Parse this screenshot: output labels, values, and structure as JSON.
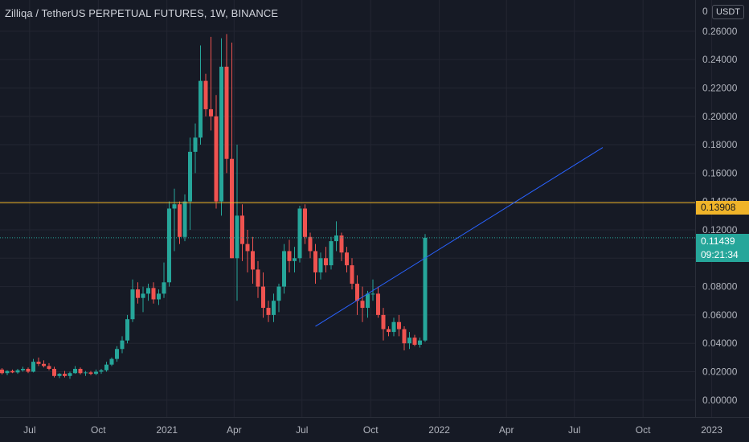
{
  "title": "Zilliqa / TetherUS PERPETUAL FUTURES, 1W, BINANCE",
  "currency_button": "USDT",
  "colors": {
    "background": "#161a25",
    "grid": "#232632",
    "up": "#26a69a",
    "down": "#ef5350",
    "horizontal_line": "#f0b429",
    "trend_line": "#2962ff"
  },
  "price_labels": {
    "last_price": "0.11439",
    "countdown": "09:21:34",
    "horizontal_line_price": "0.13908"
  },
  "chart_data": {
    "type": "candlestick",
    "title": "Zilliqa / TetherUS PERPETUAL FUTURES, 1W, BINANCE",
    "y_ticks": [
      "0.26000",
      "0.24000",
      "0.22000",
      "0.20000",
      "0.18000",
      "0.16000",
      "0.14000",
      "0.12000",
      "0.10000",
      "0.08000",
      "0.06000",
      "0.04000",
      "0.02000",
      "0.00000"
    ],
    "x_ticks": [
      "Jul",
      "Oct",
      "2021",
      "Apr",
      "Jul",
      "Oct",
      "2022",
      "Apr",
      "Jul",
      "Oct",
      "2023"
    ],
    "ylim": [
      -0.012,
      0.282
    ],
    "horizontal_line": 0.13908,
    "trend_line": {
      "start": [
        "2021-07-19",
        0.052
      ],
      "end": [
        "2022-08-08",
        0.178
      ]
    },
    "candles": [
      [
        0.0215,
        0.0225,
        0.018,
        0.019
      ],
      [
        0.019,
        0.021,
        0.0175,
        0.0205
      ],
      [
        0.0205,
        0.0215,
        0.019,
        0.0195
      ],
      [
        0.0195,
        0.022,
        0.0185,
        0.021
      ],
      [
        0.021,
        0.0235,
        0.02,
        0.022
      ],
      [
        0.022,
        0.023,
        0.019,
        0.02
      ],
      [
        0.02,
        0.029,
        0.0195,
        0.027
      ],
      [
        0.027,
        0.03,
        0.024,
        0.0255
      ],
      [
        0.0255,
        0.028,
        0.023,
        0.024
      ],
      [
        0.024,
        0.026,
        0.021,
        0.022
      ],
      [
        0.022,
        0.0235,
        0.016,
        0.017
      ],
      [
        0.017,
        0.019,
        0.0155,
        0.0185
      ],
      [
        0.0185,
        0.0205,
        0.016,
        0.017
      ],
      [
        0.017,
        0.02,
        0.015,
        0.019
      ],
      [
        0.019,
        0.024,
        0.0185,
        0.022
      ],
      [
        0.022,
        0.023,
        0.018,
        0.019
      ],
      [
        0.019,
        0.0205,
        0.017,
        0.0195
      ],
      [
        0.0195,
        0.0205,
        0.0175,
        0.0185
      ],
      [
        0.0185,
        0.0215,
        0.0175,
        0.02
      ],
      [
        0.02,
        0.022,
        0.0185,
        0.021
      ],
      [
        0.021,
        0.027,
        0.02,
        0.025
      ],
      [
        0.025,
        0.03,
        0.024,
        0.029
      ],
      [
        0.029,
        0.038,
        0.027,
        0.036
      ],
      [
        0.036,
        0.045,
        0.033,
        0.042
      ],
      [
        0.042,
        0.06,
        0.04,
        0.057
      ],
      [
        0.057,
        0.085,
        0.055,
        0.078
      ],
      [
        0.078,
        0.083,
        0.068,
        0.072
      ],
      [
        0.072,
        0.08,
        0.062,
        0.075
      ],
      [
        0.075,
        0.082,
        0.07,
        0.079
      ],
      [
        0.079,
        0.083,
        0.068,
        0.071
      ],
      [
        0.071,
        0.078,
        0.067,
        0.075
      ],
      [
        0.075,
        0.097,
        0.072,
        0.083
      ],
      [
        0.083,
        0.14,
        0.08,
        0.135
      ],
      [
        0.135,
        0.149,
        0.105,
        0.138
      ],
      [
        0.138,
        0.14,
        0.11,
        0.115
      ],
      [
        0.115,
        0.145,
        0.112,
        0.14
      ],
      [
        0.14,
        0.185,
        0.12,
        0.175
      ],
      [
        0.175,
        0.195,
        0.16,
        0.185
      ],
      [
        0.185,
        0.25,
        0.18,
        0.225
      ],
      [
        0.225,
        0.23,
        0.2,
        0.205
      ],
      [
        0.205,
        0.256,
        0.19,
        0.2
      ],
      [
        0.2,
        0.215,
        0.135,
        0.14
      ],
      [
        0.14,
        0.255,
        0.13,
        0.235
      ],
      [
        0.235,
        0.258,
        0.16,
        0.17
      ],
      [
        0.17,
        0.252,
        0.1,
        0.1
      ],
      [
        0.1,
        0.18,
        0.07,
        0.13
      ],
      [
        0.13,
        0.138,
        0.098,
        0.11
      ],
      [
        0.11,
        0.12,
        0.09,
        0.105
      ],
      [
        0.105,
        0.115,
        0.082,
        0.092
      ],
      [
        0.092,
        0.098,
        0.072,
        0.08
      ],
      [
        0.08,
        0.09,
        0.058,
        0.065
      ],
      [
        0.065,
        0.07,
        0.055,
        0.06
      ],
      [
        0.06,
        0.075,
        0.055,
        0.07
      ],
      [
        0.07,
        0.082,
        0.062,
        0.08
      ],
      [
        0.08,
        0.11,
        0.075,
        0.105
      ],
      [
        0.105,
        0.113,
        0.09,
        0.098
      ],
      [
        0.098,
        0.108,
        0.09,
        0.1
      ],
      [
        0.1,
        0.137,
        0.097,
        0.135
      ],
      [
        0.135,
        0.138,
        0.11,
        0.115
      ],
      [
        0.115,
        0.118,
        0.1,
        0.105
      ],
      [
        0.105,
        0.11,
        0.082,
        0.09
      ],
      [
        0.09,
        0.104,
        0.085,
        0.1
      ],
      [
        0.1,
        0.108,
        0.09,
        0.095
      ],
      [
        0.095,
        0.115,
        0.092,
        0.112
      ],
      [
        0.112,
        0.126,
        0.105,
        0.116
      ],
      [
        0.116,
        0.118,
        0.098,
        0.104
      ],
      [
        0.104,
        0.108,
        0.09,
        0.095
      ],
      [
        0.095,
        0.1,
        0.078,
        0.082
      ],
      [
        0.082,
        0.088,
        0.06,
        0.07
      ],
      [
        0.07,
        0.08,
        0.055,
        0.065
      ],
      [
        0.065,
        0.077,
        0.058,
        0.075
      ],
      [
        0.075,
        0.085,
        0.07,
        0.075
      ],
      [
        0.075,
        0.08,
        0.058,
        0.06
      ],
      [
        0.06,
        0.065,
        0.042,
        0.05
      ],
      [
        0.05,
        0.052,
        0.045,
        0.048
      ],
      [
        0.048,
        0.058,
        0.045,
        0.055
      ],
      [
        0.055,
        0.06,
        0.045,
        0.05
      ],
      [
        0.05,
        0.052,
        0.035,
        0.04
      ],
      [
        0.04,
        0.048,
        0.036,
        0.044
      ],
      [
        0.044,
        0.046,
        0.038,
        0.039
      ],
      [
        0.039,
        0.044,
        0.037,
        0.042
      ],
      [
        0.042,
        0.117,
        0.041,
        0.11439
      ]
    ]
  }
}
